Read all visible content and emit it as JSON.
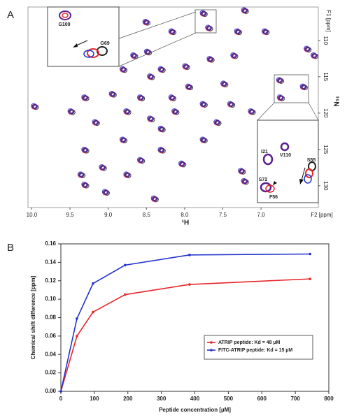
{
  "panel_labels": [
    "A",
    "B"
  ],
  "chart_data": [
    {
      "type": "scatter",
      "x_label": "¹H",
      "y_label": "¹⁵N",
      "x_unit": "F2 [ppm]",
      "y_unit": "F1 [ppm]",
      "color": "#5b1f8f",
      "x": [
        9.96,
        7.75,
        7.68,
        7.21,
        7.3,
        6.94,
        8.5,
        8.16,
        8.48,
        8.66,
        8.8,
        8.44,
        8.3,
        7.98,
        7.66,
        7.35,
        7.48,
        7.94,
        8.16,
        8.57,
        8.94,
        9.3,
        9.48,
        9.16,
        8.75,
        8.44,
        8.12,
        7.75,
        7.39,
        7.12,
        6.75,
        6.74,
        6.44,
        6.39,
        6.3,
        9.3,
        9.07,
        9.03,
        8.75,
        8.57,
        8.3,
        8.03,
        7.75,
        7.57,
        7.25,
        7.21,
        8.39,
        8.8,
        8.3,
        9.35,
        9.3
      ],
      "y": [
        119.1,
        106.3,
        108.3,
        105.9,
        108.8,
        108.8,
        107.5,
        108.8,
        111.6,
        112.1,
        114.0,
        115.0,
        114.0,
        113.6,
        112.6,
        112.1,
        116.0,
        116.4,
        117.9,
        117.9,
        117.4,
        117.9,
        119.8,
        121.3,
        119.8,
        120.8,
        119.8,
        118.8,
        118.8,
        119.8,
        115.5,
        117.9,
        116.4,
        111.2,
        112.1,
        125.1,
        127.5,
        130.9,
        128.5,
        126.5,
        125.1,
        127.0,
        123.7,
        121.3,
        128.0,
        129.4,
        131.8,
        123.7,
        122.2,
        128.5,
        129.9
      ],
      "xlim": [
        10.05,
        6.25
      ],
      "ylim": [
        105.4,
        133
      ],
      "xticks": [
        {
          "value": 10.0,
          "label": "10.0"
        },
        {
          "value": 9.5,
          "label": "9.5"
        },
        {
          "value": 9.0,
          "label": "9.0"
        },
        {
          "value": 8.5,
          "label": "8.5"
        },
        {
          "value": 8.0,
          "label": "8.0"
        },
        {
          "value": 7.5,
          "label": "7.5"
        },
        {
          "value": 7.0,
          "label": "7.0"
        }
      ],
      "yticks": [
        110,
        115,
        120,
        125,
        130
      ],
      "annotations": [
        "G109",
        "G69",
        "I21",
        "V110",
        "S72",
        "F56",
        "S55"
      ]
    },
    {
      "type": "line",
      "x_label": "Peptide concentration [µM]",
      "y_label": "Chemical shift difference [ppm]",
      "x": [
        0,
        48,
        96,
        192,
        384,
        744
      ],
      "series": [
        {
          "name": "ATRIP peptide: Kd = 48 µM",
          "color": "#e8262a",
          "values": [
            0,
            0.06,
            0.086,
            0.105,
            0.116,
            0.122
          ]
        },
        {
          "name": "FITC-ATRIP peptide: Kd = 15 µM",
          "color": "#2233cc",
          "values": [
            0,
            0.079,
            0.117,
            0.137,
            0.148,
            0.149
          ]
        }
      ],
      "xlim": [
        0,
        800
      ],
      "ylim": [
        0,
        0.16
      ],
      "xticks": [
        0,
        100,
        200,
        300,
        400,
        500,
        600,
        700,
        800
      ],
      "yticks": [
        {
          "value": 0,
          "label": "0.00"
        },
        {
          "value": 0.02,
          "label": "0.02"
        },
        {
          "value": 0.04,
          "label": "0.04"
        },
        {
          "value": 0.06,
          "label": "0.06"
        },
        {
          "value": 0.08,
          "label": "0.08"
        },
        {
          "value": 0.1,
          "label": "0.10"
        },
        {
          "value": 0.12,
          "label": "0.12"
        },
        {
          "value": 0.14,
          "label": "0.14"
        },
        {
          "value": 0.16,
          "label": "0.16"
        }
      ],
      "legend": "lower right"
    }
  ]
}
